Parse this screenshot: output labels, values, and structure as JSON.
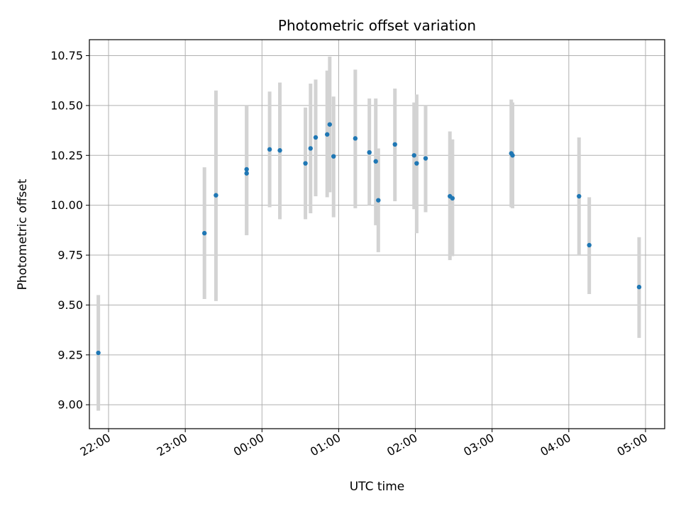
{
  "chart_data": {
    "type": "scatter",
    "title": "Photometric offset variation",
    "xlabel": "UTC time",
    "ylabel": "Photometric offset",
    "x_axis": {
      "unit": "UTC clock time (crosses midnight)",
      "range": [
        "21:45",
        "05:15"
      ],
      "ticks": [
        "22:00",
        "23:00",
        "00:00",
        "01:00",
        "02:00",
        "03:00",
        "04:00",
        "05:00"
      ]
    },
    "y_axis": {
      "range": [
        8.88,
        10.83
      ],
      "ticks": [
        "9.00",
        "9.25",
        "9.50",
        "9.75",
        "10.00",
        "10.25",
        "10.50",
        "10.75"
      ]
    },
    "grid": true,
    "legend": "none",
    "colors": {
      "points": "#1f77b4",
      "errorbars": "#d3d3d3",
      "grid": "#b0b0b0"
    },
    "points": [
      {
        "x": "21:52",
        "y": 9.26,
        "low": 8.97,
        "high": 9.55
      },
      {
        "x": "23:15",
        "y": 9.86,
        "low": 9.53,
        "high": 10.19
      },
      {
        "x": "23:24",
        "y": 10.05,
        "low": 9.52,
        "high": 10.575
      },
      {
        "x": "23:48",
        "y": 10.18,
        "low": 9.85,
        "high": 10.5
      },
      {
        "x": "23:48",
        "y": 10.16,
        "low": 9.85,
        "high": 10.5
      },
      {
        "x": "00:06",
        "y": 10.28,
        "low": 9.99,
        "high": 10.57
      },
      {
        "x": "00:14",
        "y": 10.275,
        "low": 9.93,
        "high": 10.615
      },
      {
        "x": "00:34",
        "y": 10.21,
        "low": 9.93,
        "high": 10.49
      },
      {
        "x": "00:38",
        "y": 10.285,
        "low": 9.96,
        "high": 10.61
      },
      {
        "x": "00:42",
        "y": 10.34,
        "low": 10.045,
        "high": 10.63
      },
      {
        "x": "00:51",
        "y": 10.355,
        "low": 10.04,
        "high": 10.675
      },
      {
        "x": "00:53",
        "y": 10.405,
        "low": 10.065,
        "high": 10.745
      },
      {
        "x": "00:56",
        "y": 10.245,
        "low": 9.94,
        "high": 10.545
      },
      {
        "x": "01:13",
        "y": 10.335,
        "low": 9.985,
        "high": 10.68
      },
      {
        "x": "01:24",
        "y": 10.265,
        "low": 10.0,
        "high": 10.535
      },
      {
        "x": "01:29",
        "y": 10.22,
        "low": 9.9,
        "high": 10.535
      },
      {
        "x": "01:31",
        "y": 10.025,
        "low": 9.765,
        "high": 10.285
      },
      {
        "x": "01:44",
        "y": 10.305,
        "low": 10.02,
        "high": 10.585
      },
      {
        "x": "01:59",
        "y": 10.25,
        "low": 9.98,
        "high": 10.515
      },
      {
        "x": "02:01",
        "y": 10.21,
        "low": 9.86,
        "high": 10.555
      },
      {
        "x": "02:08",
        "y": 10.235,
        "low": 9.965,
        "high": 10.5
      },
      {
        "x": "02:27",
        "y": 10.045,
        "low": 9.725,
        "high": 10.37
      },
      {
        "x": "02:29",
        "y": 10.035,
        "low": 9.745,
        "high": 10.33
      },
      {
        "x": "03:15",
        "y": 10.26,
        "low": 9.99,
        "high": 10.53
      },
      {
        "x": "03:16",
        "y": 10.25,
        "low": 9.985,
        "high": 10.515
      },
      {
        "x": "04:08",
        "y": 10.045,
        "low": 9.75,
        "high": 10.34
      },
      {
        "x": "04:16",
        "y": 9.8,
        "low": 9.555,
        "high": 10.04
      },
      {
        "x": "04:55",
        "y": 9.59,
        "low": 9.335,
        "high": 9.84
      }
    ]
  }
}
